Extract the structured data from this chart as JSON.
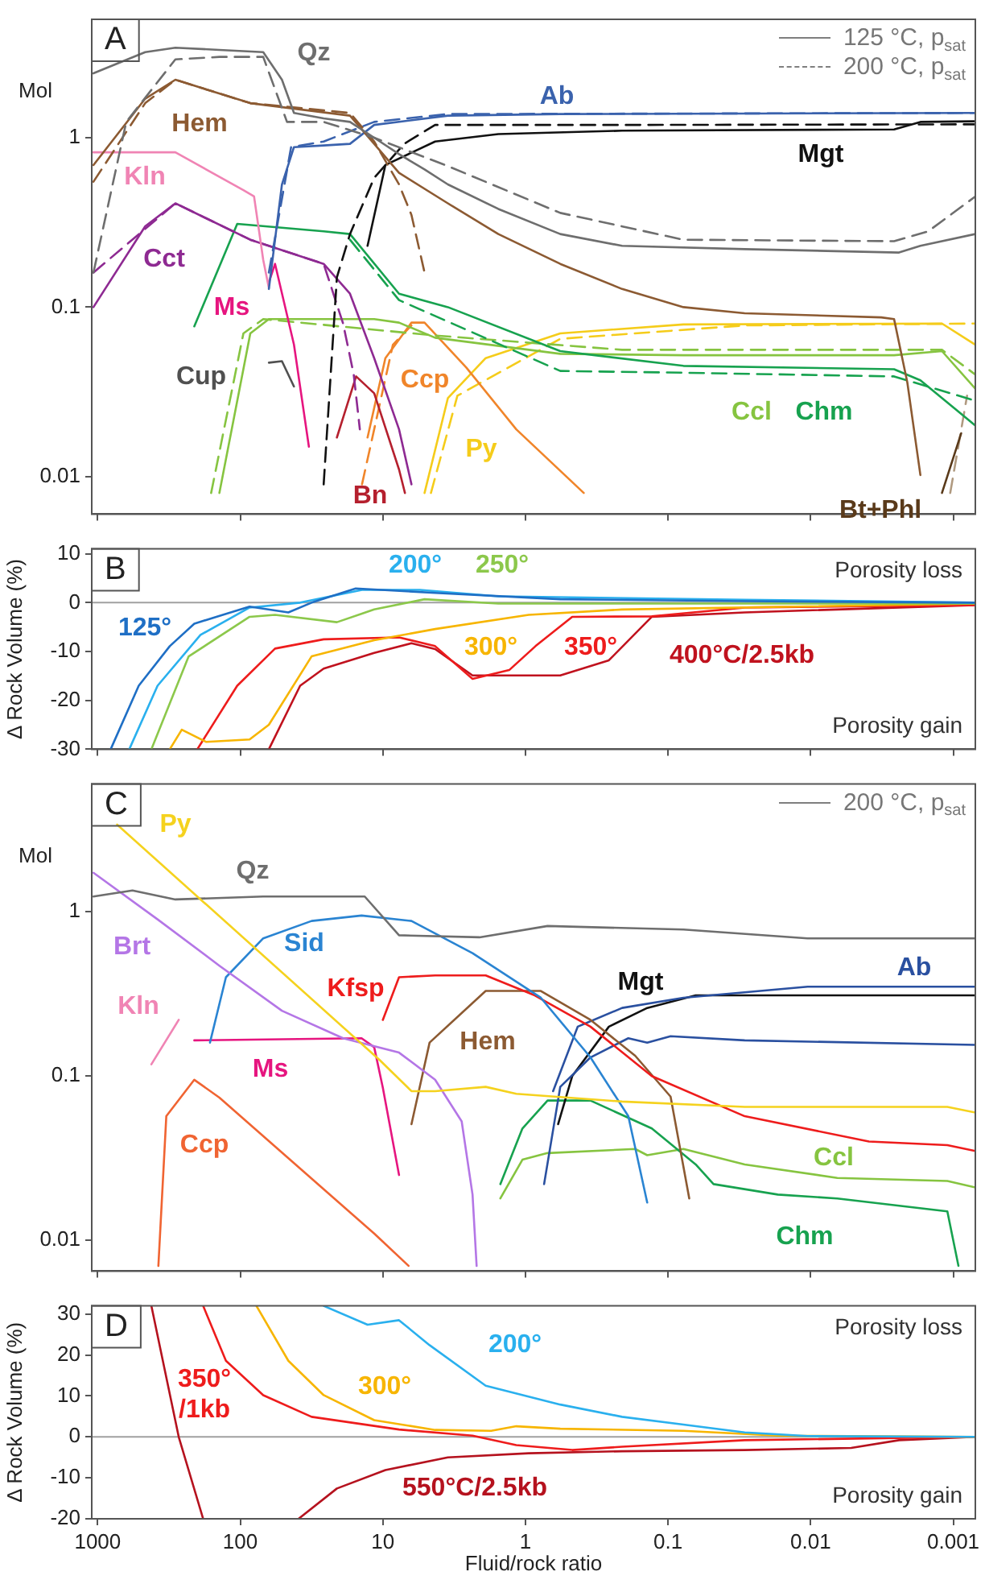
{
  "chart_data": [
    {
      "type": "line",
      "title": "A",
      "ylabel": "Mol",
      "log": "xy",
      "marker": "none",
      "tick_labels": "y",
      "xlim": [
        1100,
        0.0007
      ],
      "xticks": [
        1000,
        100,
        10,
        1,
        0.1,
        0.01,
        0.001
      ],
      "ylim": [
        0.006,
        5
      ],
      "yticks": [
        0.01,
        0.1,
        1
      ],
      "series": [
        {
          "name": "Qz",
          "color": "#6e6e6e",
          "line_style": "solid",
          "x": [
            1070,
            464,
            285,
            140,
            69,
            51,
            42,
            26,
            17,
            11.5,
            7.7,
            5.1,
            3.5,
            1.55,
            0.57,
            0.21,
            0.029,
            0.0024,
            0.0017,
            0.0007
          ],
          "values": [
            2.4,
            3.2,
            3.4,
            3.3,
            3.2,
            2.2,
            1.4,
            1.3,
            1.24,
            1.0,
            0.8,
            0.65,
            0.53,
            0.38,
            0.27,
            0.23,
            0.22,
            0.21,
            0.23,
            0.27
          ]
        },
        {
          "color": "#6e6e6e",
          "line_style": "dashed",
          "x": [
            1070,
            630,
            285,
            140,
            69,
            47,
            26,
            11.5,
            3.5,
            0.57,
            0.078,
            0.0026,
            0.0015,
            0.0007
          ],
          "values": [
            0.16,
            1.24,
            2.9,
            3.0,
            3.0,
            1.24,
            1.24,
            1.0,
            0.68,
            0.36,
            0.25,
            0.245,
            0.28,
            0.45
          ]
        },
        {
          "name": "Hem",
          "color": "#8c5a32",
          "line_style": "solid",
          "x": [
            1070,
            464,
            285,
            85,
            17,
            7.7,
            3.5,
            1.55,
            0.57,
            0.21,
            0.078,
            0.029,
            0.0032,
            0.0026,
            0.0021,
            0.0017
          ],
          "values": [
            0.69,
            1.7,
            2.2,
            1.6,
            1.35,
            0.62,
            0.41,
            0.27,
            0.18,
            0.128,
            0.1,
            0.092,
            0.087,
            0.085,
            0.036,
            0.0102
          ]
        },
        {
          "color": "#8c5a32",
          "line_style": "dashed",
          "x": [
            1070,
            464,
            285,
            85,
            17,
            11.5,
            7.7,
            6.3,
            5.1
          ],
          "values": [
            0.55,
            1.6,
            2.2,
            1.6,
            1.4,
            0.95,
            0.53,
            0.35,
            0.16
          ]
        },
        {
          "name": "Ab",
          "color": "#3a62ad",
          "line_style": "solid",
          "x": [
            63,
            51,
            42,
            26,
            17,
            11.5,
            3.5,
            0.57,
            0.0007
          ],
          "values": [
            0.128,
            0.53,
            0.88,
            0.9,
            0.92,
            1.19,
            1.35,
            1.38,
            1.4
          ]
        },
        {
          "color": "#3a62ad",
          "line_style": "dashed",
          "x": [
            63,
            44,
            26,
            11.5,
            3.5,
            0.0007
          ],
          "values": [
            0.16,
            0.88,
            0.95,
            1.24,
            1.38,
            1.4
          ]
        },
        {
          "name": "Mgt",
          "color": "#111111",
          "line_style": "solid",
          "x": [
            12.8,
            9.6,
            4.3,
            1.55,
            0.21,
            0.0026,
            0.0017,
            0.0007
          ],
          "values": [
            0.23,
            0.69,
            0.95,
            1.05,
            1.1,
            1.12,
            1.24,
            1.25
          ]
        },
        {
          "color": "#111111",
          "line_style": "dashed",
          "x": [
            26,
            21,
            17,
            11.5,
            7.1,
            4.3,
            0.21,
            0.0007
          ],
          "values": [
            0.009,
            0.15,
            0.27,
            0.58,
            0.92,
            1.19,
            1.19,
            1.2
          ]
        },
        {
          "name": "Kln",
          "color": "#f084b4",
          "line_style": "solid",
          "x": [
            1070,
            285,
            95,
            80,
            69,
            63
          ],
          "values": [
            0.82,
            0.82,
            0.49,
            0.45,
            0.19,
            0.13
          ]
        },
        {
          "name": "Cct",
          "color": "#8e2a92",
          "line_style": "solid",
          "x": [
            1070,
            464,
            285,
            85,
            31.6,
            26,
            17,
            11.5,
            7.7,
            6.3
          ],
          "values": [
            0.1,
            0.3,
            0.41,
            0.25,
            0.19,
            0.18,
            0.12,
            0.05,
            0.019,
            0.009
          ]
        },
        {
          "color": "#8e2a92",
          "line_style": "dashed",
          "x": [
            1070,
            285,
            85,
            26,
            19,
            16,
            14.5
          ],
          "values": [
            0.16,
            0.41,
            0.25,
            0.18,
            0.08,
            0.04,
            0.019
          ]
        },
        {
          "name": "Ms",
          "color": "#e6157f",
          "line_style": "solid",
          "x": [
            63,
            57,
            42,
            33
          ],
          "values": [
            0.14,
            0.18,
            0.06,
            0.015
          ]
        },
        {
          "name": "Chm",
          "color": "#17a24f",
          "line_style": "solid",
          "x": [
            210,
            105,
            26,
            17,
            7.7,
            3.5,
            0.57,
            0.078,
            0.0026,
            0.0017,
            0.0007
          ],
          "values": [
            0.077,
            0.31,
            0.28,
            0.27,
            0.12,
            0.1,
            0.055,
            0.045,
            0.043,
            0.037,
            0.02
          ]
        },
        {
          "color": "#17a24f",
          "line_style": "dashed",
          "x": [
            17,
            7.7,
            0.57,
            0.078,
            0.0026,
            0.0007
          ],
          "values": [
            0.25,
            0.11,
            0.042,
            0.041,
            0.039,
            0.028
          ]
        },
        {
          "name": "Ccl",
          "color": "#86c440",
          "line_style": "solid",
          "x": [
            140,
            85,
            63,
            11.5,
            7.7,
            4.3,
            0.57,
            0.078,
            0.0026,
            0.0012,
            0.0007
          ],
          "values": [
            0.008,
            0.07,
            0.085,
            0.085,
            0.081,
            0.066,
            0.053,
            0.052,
            0.052,
            0.055,
            0.033
          ]
        },
        {
          "color": "#86c440",
          "line_style": "dashed",
          "x": [
            160,
            95,
            69,
            4.3,
            0.21,
            0.0012,
            0.0007
          ],
          "values": [
            0.008,
            0.07,
            0.085,
            0.068,
            0.056,
            0.056,
            0.04
          ]
        },
        {
          "name": "Cup",
          "color": "#505050",
          "line_style": "solid",
          "x": [
            63,
            51,
            42
          ],
          "values": [
            0.047,
            0.048,
            0.034
          ]
        },
        {
          "name": "Bn",
          "color": "#b5202e",
          "line_style": "solid",
          "x": [
            21,
            15.4,
            11.5,
            7.7,
            7
          ],
          "values": [
            0.017,
            0.039,
            0.031,
            0.011,
            0.008
          ]
        },
        {
          "name": "Ccp",
          "color": "#f0852a",
          "line_style": "solid",
          "x": [
            12.8,
            9.6,
            6.3,
            5.1,
            2.6,
            1.16,
            0.39
          ],
          "values": [
            0.017,
            0.05,
            0.081,
            0.081,
            0.044,
            0.019,
            0.008
          ]
        },
        {
          "color": "#f0852a",
          "line_style": "dashed",
          "x": [
            14,
            8.5,
            6.3
          ],
          "values": [
            0.009,
            0.06,
            0.078
          ]
        },
        {
          "name": "Py",
          "color": "#f5cc1a",
          "line_style": "solid",
          "x": [
            5.1,
            3.5,
            1.9,
            0.57,
            0.078,
            0.0012,
            0.0007
          ],
          "values": [
            0.008,
            0.029,
            0.05,
            0.07,
            0.079,
            0.08,
            0.06
          ]
        },
        {
          "color": "#f5cc1a",
          "line_style": "dashed",
          "x": [
            4.6,
            3.0,
            0.57,
            0.029,
            0.0007
          ],
          "values": [
            0.008,
            0.03,
            0.065,
            0.078,
            0.08
          ]
        },
        {
          "name": "Bt+Phl",
          "color": "#5a3a1a",
          "line_style": "solid",
          "x": [
            0.0012,
            0.00088
          ],
          "values": [
            0.008,
            0.018
          ]
        },
        {
          "color": "#b09a80",
          "line_style": "dashed",
          "x": [
            0.00105,
            0.0008
          ],
          "values": [
            0.008,
            0.03
          ]
        }
      ],
      "annotations": [
        "125 °C, p$_{sat}$",
        "200 °C, p$_{sat}$"
      ]
    },
    {
      "type": "line",
      "title": "B",
      "ylabel": "Δ Rock Volume (%)",
      "log": "x",
      "marker": "none",
      "tick_labels": "y",
      "xlim": [
        1100,
        0.0007
      ],
      "xticks": [
        1000,
        100,
        10,
        1,
        0.1,
        0.01,
        0.001
      ],
      "ylim": [
        -30,
        11
      ],
      "yticks": [
        -30,
        -20,
        -10,
        0,
        10
      ],
      "ref_lines": [
        {
          "axis": "y",
          "value": 0,
          "color": "#a0a0a0"
        }
      ],
      "series": [
        {
          "name": "125°",
          "color": "#1f6fc5",
          "x": [
            810,
            515,
            312,
            210,
            86,
            46,
            31.6,
            15.5,
            4.3,
            0.57,
            0.029,
            0.0007
          ],
          "values": [
            -30,
            -17,
            -8.9,
            -4.3,
            -0.8,
            -2,
            0,
            2.9,
            2,
            0.7,
            0.3,
            0
          ]
        },
        {
          "name": "200°",
          "color": "#2ab0ee",
          "x": [
            600,
            380,
            190,
            86,
            38,
            14,
            5.5,
            1.55,
            0.029,
            0.0007
          ],
          "values": [
            -30,
            -17,
            -6.6,
            -1,
            0,
            2.6,
            2.6,
            1.3,
            0.6,
            0
          ]
        },
        {
          "name": "250°",
          "color": "#8cc84b",
          "x": [
            420,
            230,
            86,
            57,
            21,
            11.5,
            5.1,
            1.55,
            0.0007
          ],
          "values": [
            -30,
            -11,
            -2.9,
            -2.5,
            -4,
            -1.4,
            0.7,
            -0.2,
            -0.2
          ]
        },
        {
          "name": "300°",
          "color": "#f7b500",
          "x": [
            312,
            257,
            173,
            86,
            63,
            31.6,
            11.5,
            4.3,
            0.95,
            0.21,
            0.0007
          ],
          "values": [
            -30,
            -26,
            -28.5,
            -28,
            -25,
            -11,
            -7.7,
            -5.4,
            -2.5,
            -1.4,
            -0.2
          ]
        },
        {
          "name": "350°",
          "color": "#ee1c1c",
          "x": [
            200,
            105,
            57,
            26,
            7.7,
            4.3,
            2.35,
            1.3,
            0.85,
            0.47,
            0.13,
            0.029,
            0.0007
          ],
          "values": [
            -30,
            -17,
            -9.4,
            -7.5,
            -7.1,
            -8.9,
            -15.6,
            -13.8,
            -8.9,
            -2.9,
            -2.8,
            -1.0,
            -0.5
          ]
        },
        {
          "name": "400°C/2.5kb",
          "color": "#c0121e",
          "x": [
            63,
            38,
            26,
            11.5,
            6.3,
            4.3,
            2.35,
            0.57,
            0.26,
            0.13,
            0.029,
            0.0007
          ],
          "values": [
            -30,
            -17,
            -13.5,
            -10.3,
            -8.3,
            -9.5,
            -14.9,
            -14.9,
            -11.8,
            -2.9,
            -2,
            -0.5
          ]
        }
      ],
      "annotations": [
        "Porosity loss",
        "Porosity gain"
      ]
    },
    {
      "type": "line",
      "title": "C",
      "ylabel": "Mol",
      "log": "xy",
      "marker": "none",
      "tick_labels": "y",
      "xlim": [
        1100,
        0.0007
      ],
      "xticks": [
        1000,
        100,
        10,
        1,
        0.1,
        0.01,
        0.001
      ],
      "ylim": [
        0.0065,
        6
      ],
      "yticks": [
        0.01,
        0.1,
        1
      ],
      "series": [
        {
          "name": "Py",
          "color": "#f5d21e",
          "line_style": "solid",
          "x": [
            730,
            10.5,
            6.3,
            4.3,
            1.9,
            1.16,
            0.21,
            0.029,
            0.0011,
            0.0007
          ],
          "values": [
            3.4,
            0.125,
            0.081,
            0.081,
            0.086,
            0.078,
            0.07,
            0.065,
            0.065,
            0.06
          ]
        },
        {
          "name": "Qz",
          "color": "#6e6e6e",
          "x": [
            1070,
            570,
            285,
            69,
            13.4,
            7.7,
            2.1,
            0.7,
            0.078,
            0.0105,
            0.0007
          ],
          "values": [
            1.24,
            1.35,
            1.19,
            1.24,
            1.24,
            0.72,
            0.7,
            0.82,
            0.78,
            0.69,
            0.69
          ]
        },
        {
          "name": "Brt",
          "color": "#b476e6",
          "x": [
            1070,
            380,
            140,
            51,
            19,
            7.7,
            4.3,
            2.8,
            2.35,
            2.2
          ],
          "values": [
            1.73,
            0.9,
            0.47,
            0.25,
            0.17,
            0.139,
            0.095,
            0.053,
            0.019,
            0.007
          ]
        },
        {
          "name": "Sid",
          "color": "#2a84d2",
          "x": [
            163,
            126,
            69,
            31.6,
            14.1,
            6.3,
            2.35,
            0.78,
            0.35,
            0.19,
            0.14
          ],
          "values": [
            0.16,
            0.4,
            0.69,
            0.88,
            0.95,
            0.88,
            0.56,
            0.3,
            0.13,
            0.057,
            0.017
          ]
        },
        {
          "name": "Kfsp",
          "color": "#ee1c1c",
          "x": [
            10,
            7.7,
            4.3,
            1.9,
            0.86,
            0.35,
            0.13,
            0.029,
            0.0039,
            0.0011,
            0.0007
          ],
          "values": [
            0.22,
            0.4,
            0.41,
            0.41,
            0.31,
            0.2,
            0.1,
            0.057,
            0.04,
            0.038,
            0.035
          ]
        },
        {
          "name": "Hem",
          "color": "#8c5a32",
          "x": [
            6.3,
            4.7,
            1.9,
            0.78,
            0.35,
            0.17,
            0.096,
            0.071
          ],
          "values": [
            0.051,
            0.16,
            0.33,
            0.33,
            0.22,
            0.133,
            0.075,
            0.018
          ]
        },
        {
          "name": "Ms",
          "color": "#e6157f",
          "x": [
            210,
            14.1,
            11.5,
            10,
            7.7
          ],
          "values": [
            0.165,
            0.17,
            0.15,
            0.085,
            0.025
          ]
        },
        {
          "name": "Kln",
          "color": "#f084b4",
          "x": [
            420,
            270
          ],
          "values": [
            0.118,
            0.22
          ]
        },
        {
          "name": "Ccp",
          "color": "#f06432",
          "x": [
            375,
            330,
            210,
            140,
            11.5,
            6.6
          ],
          "values": [
            0.007,
            0.057,
            0.095,
            0.074,
            0.011,
            0.007
          ]
        },
        {
          "name": "Ab",
          "color": "#2a50a0",
          "x": [
            0.64,
            0.43,
            0.21,
            0.078,
            0.0105,
            0.0007
          ],
          "values": [
            0.081,
            0.2,
            0.26,
            0.3,
            0.35,
            0.35
          ]
        },
        {
          "color": "#2a50a0",
          "x": [
            0.74,
            0.57,
            0.35,
            0.19,
            0.14,
            0.096,
            0.029,
            0.0007
          ],
          "values": [
            0.022,
            0.086,
            0.13,
            0.17,
            0.16,
            0.175,
            0.165,
            0.155
          ]
        },
        {
          "name": "Mgt",
          "color": "#111111",
          "x": [
            0.59,
            0.47,
            0.26,
            0.14,
            0.064,
            0.0105,
            0.0007
          ],
          "values": [
            0.051,
            0.1,
            0.2,
            0.26,
            0.31,
            0.31,
            0.31
          ]
        },
        {
          "name": "Chm",
          "color": "#17a24f",
          "x": [
            1.5,
            1.05,
            0.7,
            0.35,
            0.13,
            0.064,
            0.048,
            0.017,
            0.0065,
            0.0011,
            0.00092
          ],
          "values": [
            0.022,
            0.048,
            0.071,
            0.071,
            0.048,
            0.029,
            0.022,
            0.019,
            0.018,
            0.015,
            0.007
          ]
        },
        {
          "name": "Ccl",
          "color": "#86c440",
          "x": [
            1.5,
            1.05,
            0.7,
            0.17,
            0.14,
            0.078,
            0.029,
            0.0065,
            0.0011,
            0.0007
          ],
          "values": [
            0.018,
            0.031,
            0.034,
            0.036,
            0.033,
            0.036,
            0.029,
            0.024,
            0.023,
            0.021
          ]
        }
      ],
      "annotations": [
        "200 °C, p$_{sat}$"
      ]
    },
    {
      "type": "line",
      "title": "D",
      "ylabel": "Δ Rock Volume (%)",
      "xlabel": "Fluid/rock ratio",
      "log": "x",
      "marker": "none",
      "xlim": [
        1100,
        0.0007
      ],
      "xticks": [
        1000,
        100,
        10,
        1,
        0.1,
        0.01,
        0.001
      ],
      "ylim": [
        -20,
        32
      ],
      "yticks": [
        -20,
        -10,
        0,
        10,
        20,
        30
      ],
      "ref_lines": [
        {
          "axis": "y",
          "value": 0,
          "color": "#a0a0a0"
        }
      ],
      "series": [
        {
          "name": "200°",
          "color": "#2ab0ee",
          "x": [
            26,
            12.8,
            7.7,
            4.7,
            1.9,
            0.57,
            0.21,
            0.078,
            0.029,
            0.0105,
            0.0007
          ],
          "values": [
            32,
            27.4,
            28.5,
            22.4,
            12.5,
            7.9,
            4.9,
            3,
            1.1,
            0.2,
            0
          ]
        },
        {
          "name": "300°",
          "color": "#f7b500",
          "x": [
            77,
            46,
            26,
            11.5,
            4.3,
            1.74,
            1.16,
            0.57,
            0.078,
            0.017,
            0.0007
          ],
          "values": [
            32,
            18.6,
            10.2,
            4.1,
            1.7,
            1.5,
            2.6,
            2,
            1.5,
            0.3,
            0
          ]
        },
        {
          "name": "350°\n/1kb",
          "color": "#ee1c1c",
          "x": [
            182,
            126,
            69,
            31.6,
            7.7,
            2.35,
            1.16,
            0.47,
            0.21,
            0.029,
            0.0007
          ],
          "values": [
            32,
            18.6,
            10.2,
            4.9,
            1.8,
            0.3,
            -2,
            -3.2,
            -2.4,
            -0.8,
            0
          ]
        },
        {
          "name": "550°C/2.5kb",
          "color": "#b5121e",
          "x": [
            420,
            270,
            182,
            100,
            39,
            21,
            9.6,
            3.5,
            0.95,
            0.21,
            0.029,
            0.0052,
            0.0024,
            0.0007
          ],
          "values": [
            32,
            0,
            -20,
            null,
            -20,
            -12.6,
            -8.1,
            -5,
            -4,
            -3.5,
            -3.2,
            -2.7,
            -0.8,
            0
          ]
        }
      ],
      "annotations": [
        "Porosity loss",
        "Porosity gain"
      ]
    }
  ]
}
